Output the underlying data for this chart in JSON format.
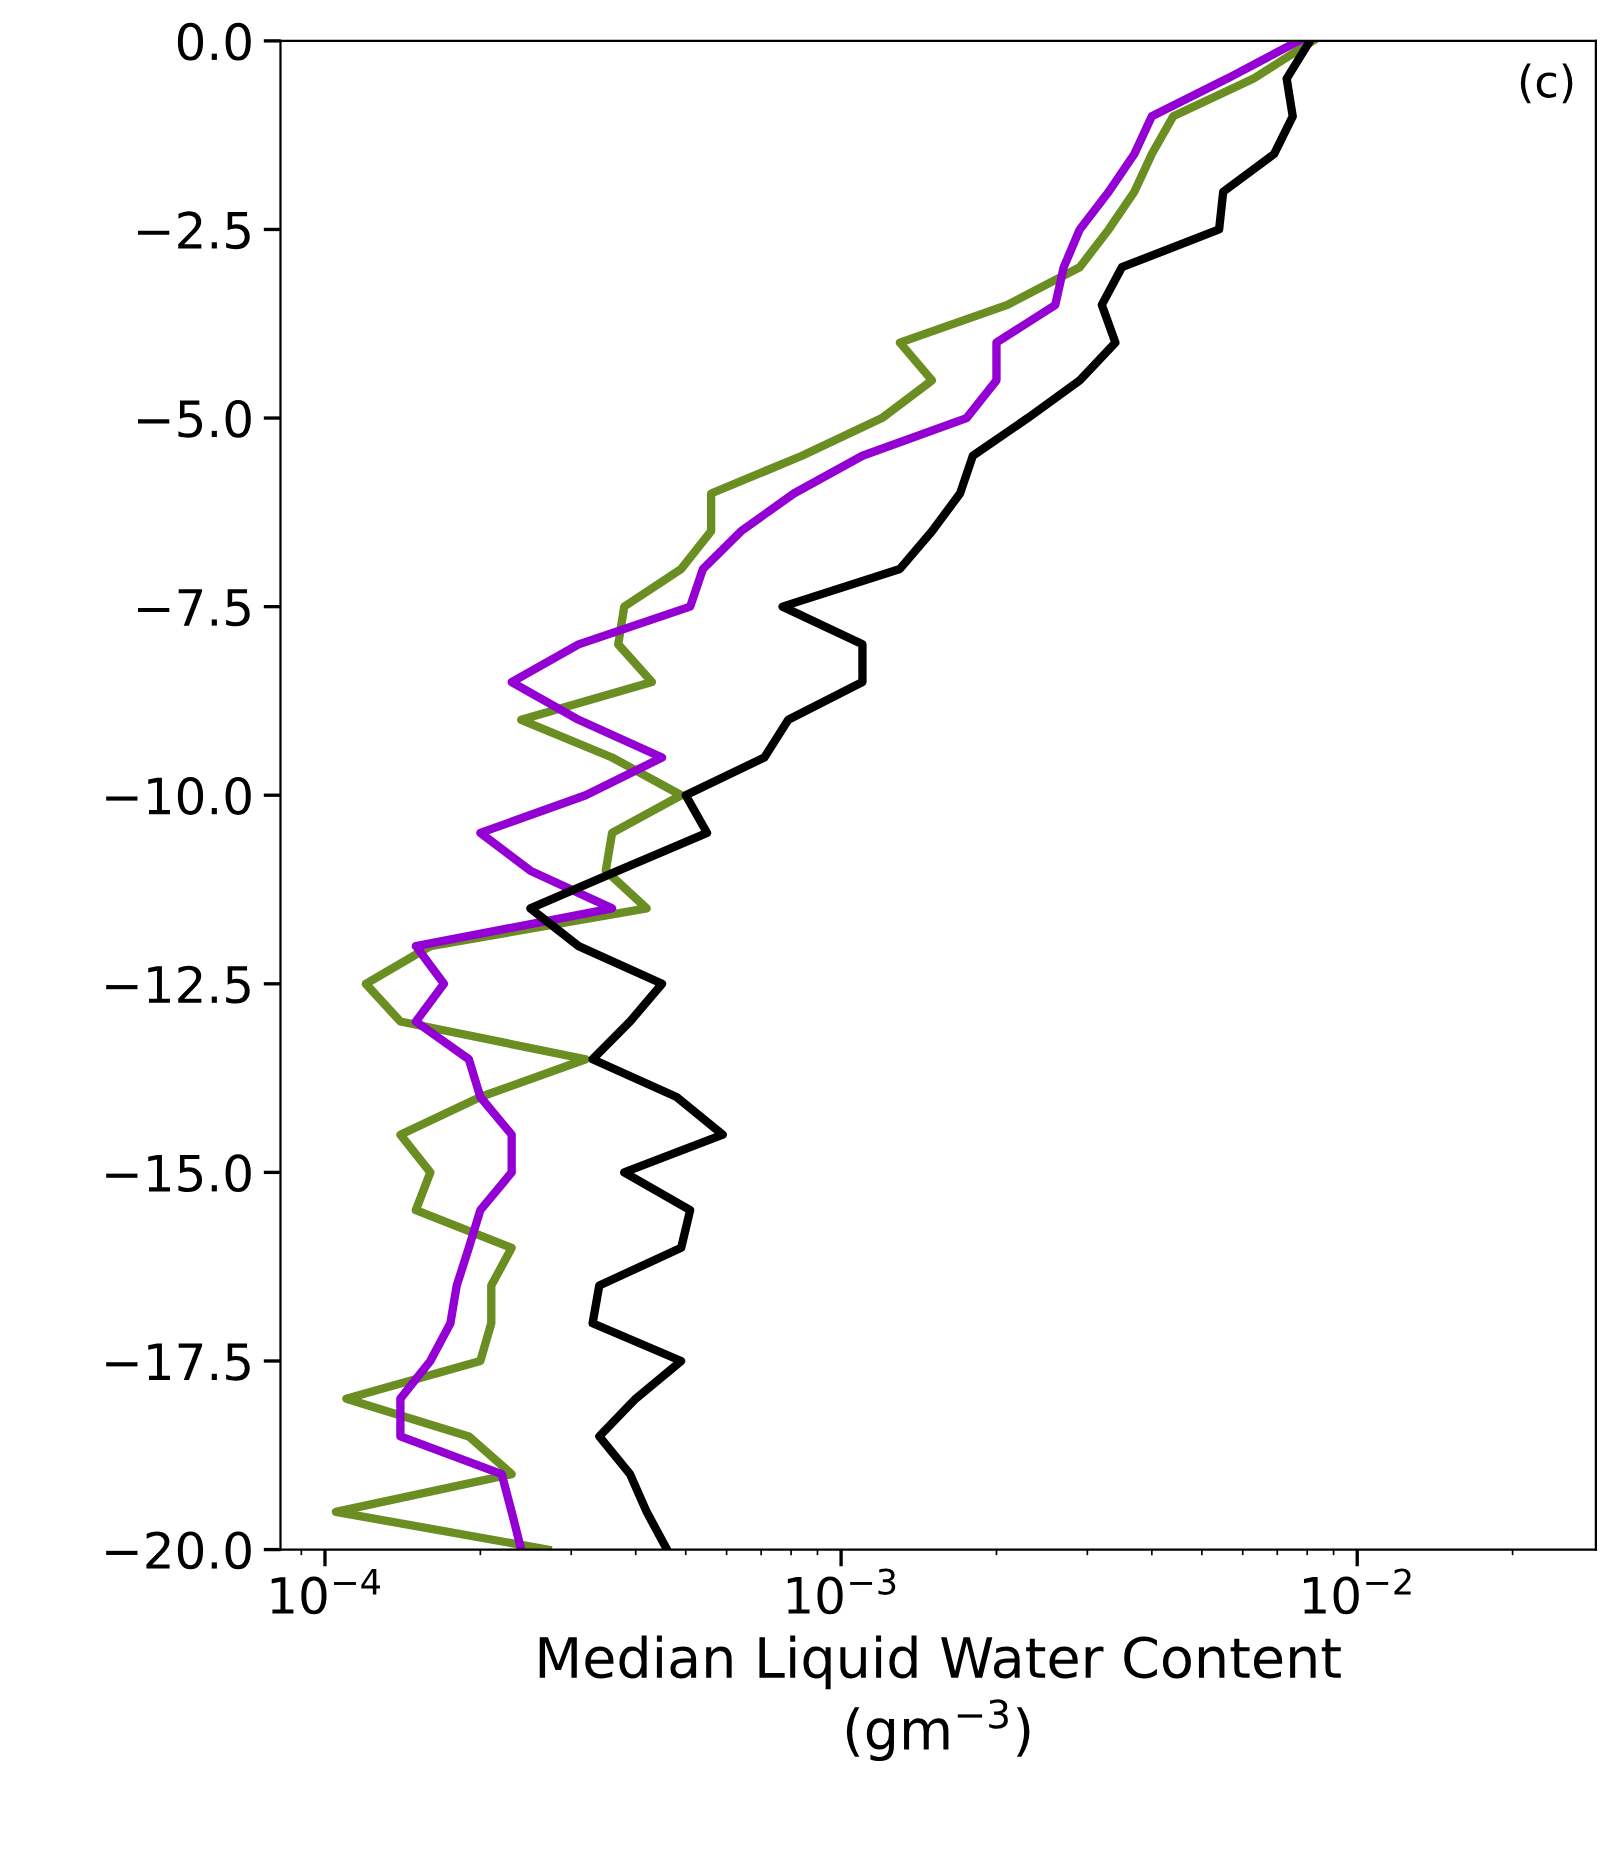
{
  "chart_data": {
    "type": "line",
    "xlabel": "Median Liquid Water Content\n(gm$^{−3}$)",
    "log": "x",
    "grid": false,
    "marker": "none",
    "line_style": "solid",
    "xlim": [
      8.2e-05,
      0.029
    ],
    "xticks": [
      {
        "value": 0.0001,
        "label": "10$^{−4}$"
      },
      {
        "value": 0.001,
        "label": "10$^{−3}$"
      },
      {
        "value": 0.01,
        "label": "10$^{−2}$"
      }
    ],
    "ylim": [
      -20,
      0
    ],
    "yticks": [
      {
        "value": 0,
        "label": "0.0"
      },
      {
        "value": -2.5,
        "label": "−2.5"
      },
      {
        "value": -5,
        "label": "−5.0"
      },
      {
        "value": -7.5,
        "label": "−7.5"
      },
      {
        "value": -10,
        "label": "−10.0"
      },
      {
        "value": -12.5,
        "label": "−12.5"
      },
      {
        "value": -15,
        "label": "−15.0"
      },
      {
        "value": -17.5,
        "label": "−17.5"
      },
      {
        "value": -20,
        "label": "−20.0"
      }
    ],
    "annotations": [
      "(c)"
    ],
    "series": [
      {
        "color": "#6b8e23",
        "x": [
          0.0082,
          0.0063,
          0.0044,
          0.004,
          0.0037,
          0.0033,
          0.0029,
          0.0021,
          0.0013,
          0.0015,
          0.0012,
          0.00084,
          0.00056,
          0.00056,
          0.00049,
          0.00038,
          0.00037,
          0.00043,
          0.00024,
          0.00036,
          0.00049,
          0.00036,
          0.00035,
          0.00042,
          0.00016,
          0.00012,
          0.00014,
          0.00032,
          0.0002,
          0.00014,
          0.00016,
          0.00015,
          0.00023,
          0.00021,
          0.00021,
          0.0002,
          0.00011,
          0.00019,
          0.00023,
          0.000105,
          0.00027
        ],
        "values": [
          0,
          -0.5,
          -1,
          -1.5,
          -2,
          -2.5,
          -3,
          -3.5,
          -4,
          -4.5,
          -5,
          -5.5,
          -6,
          -6.5,
          -7,
          -7.5,
          -8,
          -8.5,
          -9,
          -9.5,
          -10,
          -10.5,
          -11,
          -11.5,
          -12,
          -12.5,
          -13,
          -13.5,
          -14,
          -14.5,
          -15,
          -15.5,
          -16,
          -16.5,
          -17,
          -17.5,
          -18,
          -18.5,
          -19,
          -19.5,
          -20
        ]
      },
      {
        "color": "#9400d3",
        "x": [
          0.0077,
          0.0056,
          0.004,
          0.0037,
          0.0033,
          0.0029,
          0.0027,
          0.0026,
          0.002,
          0.002,
          0.00175,
          0.0011,
          0.00081,
          0.00064,
          0.00054,
          0.00051,
          0.00031,
          0.00023,
          0.00031,
          0.00045,
          0.00032,
          0.0002,
          0.00025,
          0.00036,
          0.00015,
          0.00017,
          0.00015,
          0.00019,
          0.0002,
          0.00023,
          0.00023,
          0.0002,
          0.00019,
          0.00018,
          0.000175,
          0.00016,
          0.00014,
          0.00014,
          0.00022,
          0.00023,
          0.00024
        ],
        "values": [
          0,
          -0.5,
          -1,
          -1.5,
          -2,
          -2.5,
          -3,
          -3.5,
          -4,
          -4.5,
          -5,
          -5.5,
          -6,
          -6.5,
          -7,
          -7.5,
          -8,
          -8.5,
          -9,
          -9.5,
          -10,
          -10.5,
          -11,
          -11.5,
          -12,
          -12.5,
          -13,
          -13.5,
          -14,
          -14.5,
          -15,
          -15.5,
          -16,
          -16.5,
          -17,
          -17.5,
          -18,
          -18.5,
          -19,
          -19.5,
          -20
        ]
      },
      {
        "color": "#000000",
        "x": [
          0.0081,
          0.0073,
          0.0075,
          0.0069,
          0.0055,
          0.0054,
          0.0035,
          0.0032,
          0.0034,
          0.0029,
          0.0023,
          0.0018,
          0.0017,
          0.0015,
          0.0013,
          0.00077,
          0.0011,
          0.0011,
          0.00079,
          0.00071,
          0.0005,
          0.00055,
          0.00037,
          0.00025,
          0.00031,
          0.00045,
          0.00039,
          0.00033,
          0.00048,
          0.00059,
          0.00038,
          0.00051,
          0.00049,
          0.00034,
          0.00033,
          0.00049,
          0.0004,
          0.00034,
          0.00039,
          0.00042,
          0.00046
        ],
        "values": [
          0,
          -0.5,
          -1,
          -1.5,
          -2,
          -2.5,
          -3,
          -3.5,
          -4,
          -4.5,
          -5,
          -5.5,
          -6,
          -6.5,
          -7,
          -7.5,
          -8,
          -8.5,
          -9,
          -9.5,
          -10,
          -10.5,
          -11,
          -11.5,
          -12,
          -12.5,
          -13,
          -13.5,
          -14,
          -14.5,
          -15,
          -15.5,
          -16,
          -16.5,
          -17,
          -17.5,
          -18,
          -18.5,
          -19,
          -19.5,
          -20
        ]
      }
    ]
  }
}
